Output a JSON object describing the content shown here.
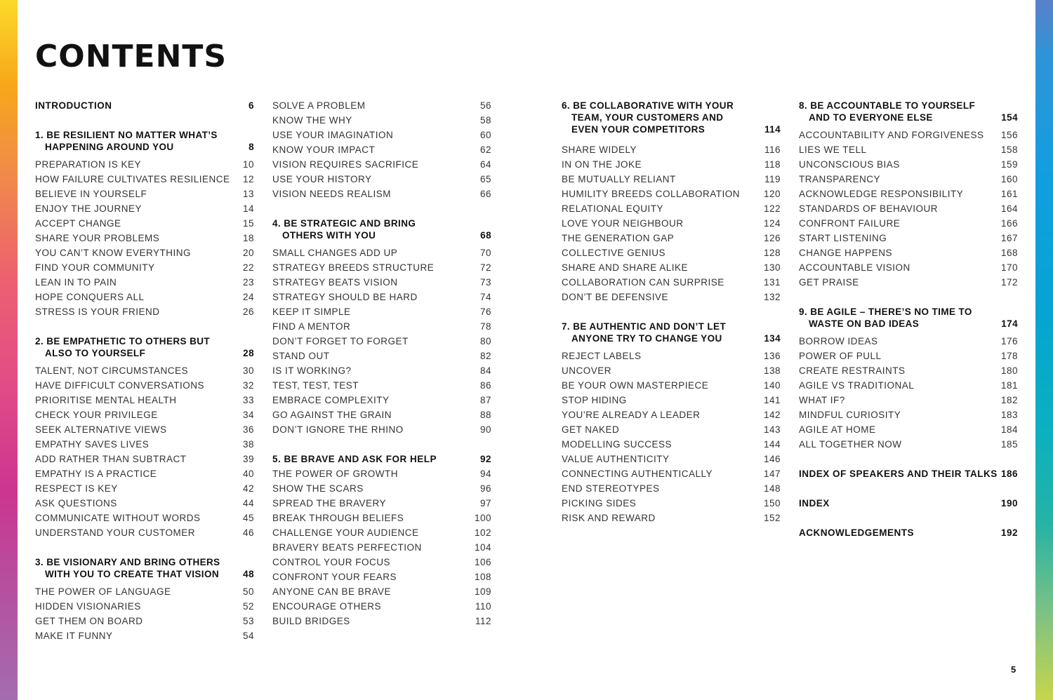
{
  "title": "CONTENTS",
  "page_number": "5",
  "colors": {
    "left_bar": "yellow-orange-magenta-purple gradient",
    "right_bar": "blue-teal-yellow gradient"
  },
  "columns": [
    [
      {
        "type": "entry",
        "bold": true,
        "title": "INTRODUCTION",
        "page": "6"
      },
      {
        "type": "head",
        "lines": [
          "1. BE RESILIENT NO MATTER WHAT’S",
          "HAPPENING AROUND YOU"
        ],
        "page": "8"
      },
      {
        "type": "entry",
        "title": "PREPARATION IS KEY",
        "page": "10"
      },
      {
        "type": "entry",
        "title": "HOW FAILURE CULTIVATES RESILIENCE",
        "page": "12"
      },
      {
        "type": "entry",
        "title": "BELIEVE IN YOURSELF",
        "page": "13"
      },
      {
        "type": "entry",
        "title": "ENJOY THE JOURNEY",
        "page": "14"
      },
      {
        "type": "entry",
        "title": "ACCEPT CHANGE",
        "page": "15"
      },
      {
        "type": "entry",
        "title": "SHARE YOUR PROBLEMS",
        "page": "18"
      },
      {
        "type": "entry",
        "title": "YOU CAN’T KNOW EVERYTHING",
        "page": "20"
      },
      {
        "type": "entry",
        "title": "FIND YOUR COMMUNITY",
        "page": "22"
      },
      {
        "type": "entry",
        "title": "LEAN IN TO PAIN",
        "page": "23"
      },
      {
        "type": "entry",
        "title": "HOPE CONQUERS ALL",
        "page": "24"
      },
      {
        "type": "entry",
        "title": "STRESS IS YOUR FRIEND",
        "page": "26"
      },
      {
        "type": "head",
        "lines": [
          "2. BE EMPATHETIC TO OTHERS BUT",
          "ALSO TO YOURSELF"
        ],
        "page": "28"
      },
      {
        "type": "entry",
        "title": "TALENT, NOT CIRCUMSTANCES",
        "page": "30"
      },
      {
        "type": "entry",
        "title": "HAVE DIFFICULT CONVERSATIONS",
        "page": "32"
      },
      {
        "type": "entry",
        "title": "PRIORITISE MENTAL HEALTH",
        "page": "33"
      },
      {
        "type": "entry",
        "title": "CHECK YOUR PRIVILEGE",
        "page": "34"
      },
      {
        "type": "entry",
        "title": "SEEK ALTERNATIVE VIEWS",
        "page": "36"
      },
      {
        "type": "entry",
        "title": "EMPATHY SAVES LIVES",
        "page": "38"
      },
      {
        "type": "entry",
        "title": "ADD RATHER THAN SUBTRACT",
        "page": "39"
      },
      {
        "type": "entry",
        "title": "EMPATHY IS A PRACTICE",
        "page": "40"
      },
      {
        "type": "entry",
        "title": "RESPECT IS KEY",
        "page": "42"
      },
      {
        "type": "entry",
        "title": "ASK QUESTIONS",
        "page": "44"
      },
      {
        "type": "entry",
        "title": "COMMUNICATE WITHOUT WORDS",
        "page": "45"
      },
      {
        "type": "entry",
        "title": "UNDERSTAND YOUR CUSTOMER",
        "page": "46"
      },
      {
        "type": "head",
        "lines": [
          "3. BE VISIONARY AND BRING OTHERS",
          "WITH YOU TO CREATE THAT VISION"
        ],
        "page": "48"
      },
      {
        "type": "entry",
        "title": "THE POWER OF LANGUAGE",
        "page": "50"
      },
      {
        "type": "entry",
        "title": "HIDDEN VISIONARIES",
        "page": "52"
      },
      {
        "type": "entry",
        "title": "GET THEM ON BOARD",
        "page": "53"
      },
      {
        "type": "entry",
        "title": "MAKE IT FUNNY",
        "page": "54"
      }
    ],
    [
      {
        "type": "entry",
        "title": "SOLVE A PROBLEM",
        "page": "56"
      },
      {
        "type": "entry",
        "title": "KNOW THE WHY",
        "page": "58"
      },
      {
        "type": "entry",
        "title": "USE YOUR IMAGINATION",
        "page": "60"
      },
      {
        "type": "entry",
        "title": "KNOW YOUR IMPACT",
        "page": "62"
      },
      {
        "type": "entry",
        "title": "VISION REQUIRES SACRIFICE",
        "page": "64"
      },
      {
        "type": "entry",
        "title": "USE YOUR HISTORY",
        "page": "65"
      },
      {
        "type": "entry",
        "title": "VISION NEEDS REALISM",
        "page": "66"
      },
      {
        "type": "head",
        "lines": [
          "4. BE STRATEGIC AND BRING",
          "OTHERS WITH YOU"
        ],
        "page": "68"
      },
      {
        "type": "entry",
        "title": "SMALL CHANGES ADD UP",
        "page": "70"
      },
      {
        "type": "entry",
        "title": "STRATEGY BREEDS STRUCTURE",
        "page": "72"
      },
      {
        "type": "entry",
        "title": "STRATEGY BEATS VISION",
        "page": "73"
      },
      {
        "type": "entry",
        "title": "STRATEGY SHOULD BE HARD",
        "page": "74"
      },
      {
        "type": "entry",
        "title": "KEEP IT SIMPLE",
        "page": "76"
      },
      {
        "type": "entry",
        "title": "FIND A MENTOR",
        "page": "78"
      },
      {
        "type": "entry",
        "title": "DON’T FORGET TO FORGET",
        "page": "80"
      },
      {
        "type": "entry",
        "title": "STAND OUT",
        "page": "82"
      },
      {
        "type": "entry",
        "title": "IS IT WORKING?",
        "page": "84"
      },
      {
        "type": "entry",
        "title": "TEST, TEST, TEST",
        "page": "86"
      },
      {
        "type": "entry",
        "title": "EMBRACE COMPLEXITY",
        "page": "87"
      },
      {
        "type": "entry",
        "title": "GO AGAINST THE GRAIN",
        "page": "88"
      },
      {
        "type": "entry",
        "title": "DON’T IGNORE THE RHINO",
        "page": "90"
      },
      {
        "type": "entry",
        "bold": true,
        "sp": true,
        "title": "5. BE BRAVE AND ASK FOR HELP",
        "page": "92"
      },
      {
        "type": "entry",
        "title": "THE POWER OF GROWTH",
        "page": "94"
      },
      {
        "type": "entry",
        "title": "SHOW THE SCARS",
        "page": "96"
      },
      {
        "type": "entry",
        "title": "SPREAD THE BRAVERY",
        "page": "97"
      },
      {
        "type": "entry",
        "title": "BREAK THROUGH BELIEFS",
        "page": "100"
      },
      {
        "type": "entry",
        "title": "CHALLENGE YOUR AUDIENCE",
        "page": "102"
      },
      {
        "type": "entry",
        "title": "BRAVERY BEATS PERFECTION",
        "page": "104"
      },
      {
        "type": "entry",
        "title": "CONTROL YOUR FOCUS",
        "page": "106"
      },
      {
        "type": "entry",
        "title": "CONFRONT YOUR FEARS",
        "page": "108"
      },
      {
        "type": "entry",
        "title": "ANYONE CAN BE BRAVE",
        "page": "109"
      },
      {
        "type": "entry",
        "title": "ENCOURAGE OTHERS",
        "page": "110"
      },
      {
        "type": "entry",
        "title": "BUILD BRIDGES",
        "page": "112"
      }
    ],
    [
      {
        "type": "head",
        "first": true,
        "extra": true,
        "lines": [
          "6. BE COLLABORATIVE WITH YOUR",
          "TEAM, YOUR CUSTOMERS AND",
          "EVEN YOUR COMPETITORS"
        ],
        "page": "114"
      },
      {
        "type": "entry",
        "title": "SHARE WIDELY",
        "page": "116"
      },
      {
        "type": "entry",
        "title": "IN ON THE JOKE",
        "page": "118"
      },
      {
        "type": "entry",
        "title": "BE MUTUALLY RELIANT",
        "page": "119"
      },
      {
        "type": "entry",
        "title": "HUMILITY BREEDS COLLABORATION",
        "page": "120"
      },
      {
        "type": "entry",
        "title": "RELATIONAL EQUITY",
        "page": "122"
      },
      {
        "type": "entry",
        "title": "LOVE YOUR NEIGHBOUR",
        "page": "124"
      },
      {
        "type": "entry",
        "title": "THE GENERATION GAP",
        "page": "126"
      },
      {
        "type": "entry",
        "title": "COLLECTIVE GENIUS",
        "page": "128"
      },
      {
        "type": "entry",
        "title": "SHARE AND SHARE ALIKE",
        "page": "130"
      },
      {
        "type": "entry",
        "title": "COLLABORATION CAN SURPRISE",
        "page": "131"
      },
      {
        "type": "entry",
        "title": "DON’T BE DEFENSIVE",
        "page": "132"
      },
      {
        "type": "head",
        "lines": [
          "7. BE AUTHENTIC AND DON’T LET",
          "ANYONE TRY TO CHANGE YOU"
        ],
        "page": "134"
      },
      {
        "type": "entry",
        "title": "REJECT LABELS",
        "page": "136"
      },
      {
        "type": "entry",
        "title": "UNCOVER",
        "page": "138"
      },
      {
        "type": "entry",
        "title": "BE YOUR OWN MASTERPIECE",
        "page": "140"
      },
      {
        "type": "entry",
        "title": "STOP HIDING",
        "page": "141"
      },
      {
        "type": "entry",
        "title": "YOU’RE ALREADY A LEADER",
        "page": "142"
      },
      {
        "type": "entry",
        "title": "GET NAKED",
        "page": "143"
      },
      {
        "type": "entry",
        "title": "MODELLING SUCCESS",
        "page": "144"
      },
      {
        "type": "entry",
        "title": "VALUE AUTHENTICITY",
        "page": "146"
      },
      {
        "type": "entry",
        "title": "CONNECTING AUTHENTICALLY",
        "page": "147"
      },
      {
        "type": "entry",
        "title": "END STEREOTYPES",
        "page": "148"
      },
      {
        "type": "entry",
        "title": "PICKING SIDES",
        "page": "150"
      },
      {
        "type": "entry",
        "title": "RISK AND REWARD",
        "page": "152"
      }
    ],
    [
      {
        "type": "head",
        "first": true,
        "lines": [
          "8. BE ACCOUNTABLE TO YOURSELF",
          "AND TO EVERYONE ELSE"
        ],
        "page": "154"
      },
      {
        "type": "entry",
        "title": "ACCOUNTABILITY AND FORGIVENESS",
        "page": "156"
      },
      {
        "type": "entry",
        "title": "LIES WE TELL",
        "page": "158"
      },
      {
        "type": "entry",
        "title": "UNCONSCIOUS BIAS",
        "page": "159"
      },
      {
        "type": "entry",
        "title": "TRANSPARENCY",
        "page": "160"
      },
      {
        "type": "entry",
        "title": "ACKNOWLEDGE RESPONSIBILITY",
        "page": "161"
      },
      {
        "type": "entry",
        "title": "STANDARDS OF BEHAVIOUR",
        "page": "164"
      },
      {
        "type": "entry",
        "title": "CONFRONT FAILURE",
        "page": "166"
      },
      {
        "type": "entry",
        "title": "START LISTENING",
        "page": "167"
      },
      {
        "type": "entry",
        "title": "CHANGE HAPPENS",
        "page": "168"
      },
      {
        "type": "entry",
        "title": "ACCOUNTABLE VISION",
        "page": "170"
      },
      {
        "type": "entry",
        "title": "GET PRAISE",
        "page": "172"
      },
      {
        "type": "head",
        "lines": [
          "9. BE AGILE – THERE’S NO TIME TO",
          "WASTE ON BAD IDEAS"
        ],
        "page": "174"
      },
      {
        "type": "entry",
        "title": "BORROW IDEAS",
        "page": "176"
      },
      {
        "type": "entry",
        "title": "POWER OF PULL",
        "page": "178"
      },
      {
        "type": "entry",
        "title": "CREATE RESTRAINTS",
        "page": "180"
      },
      {
        "type": "entry",
        "title": "AGILE VS TRADITIONAL",
        "page": "181"
      },
      {
        "type": "entry",
        "title": "WHAT IF?",
        "page": "182"
      },
      {
        "type": "entry",
        "title": "MINDFUL CURIOSITY",
        "page": "183"
      },
      {
        "type": "entry",
        "title": "AGILE AT HOME",
        "page": "184"
      },
      {
        "type": "entry",
        "title": "ALL TOGETHER NOW",
        "page": "185"
      },
      {
        "type": "entry",
        "bold": true,
        "sp": true,
        "title": "INDEX OF SPEAKERS AND THEIR TALKS",
        "page": "186"
      },
      {
        "type": "entry",
        "bold": true,
        "sp": true,
        "title": "INDEX",
        "page": "190"
      },
      {
        "type": "entry",
        "bold": true,
        "sp": true,
        "title": "ACKNOWLEDGEMENTS",
        "page": "192"
      }
    ]
  ]
}
